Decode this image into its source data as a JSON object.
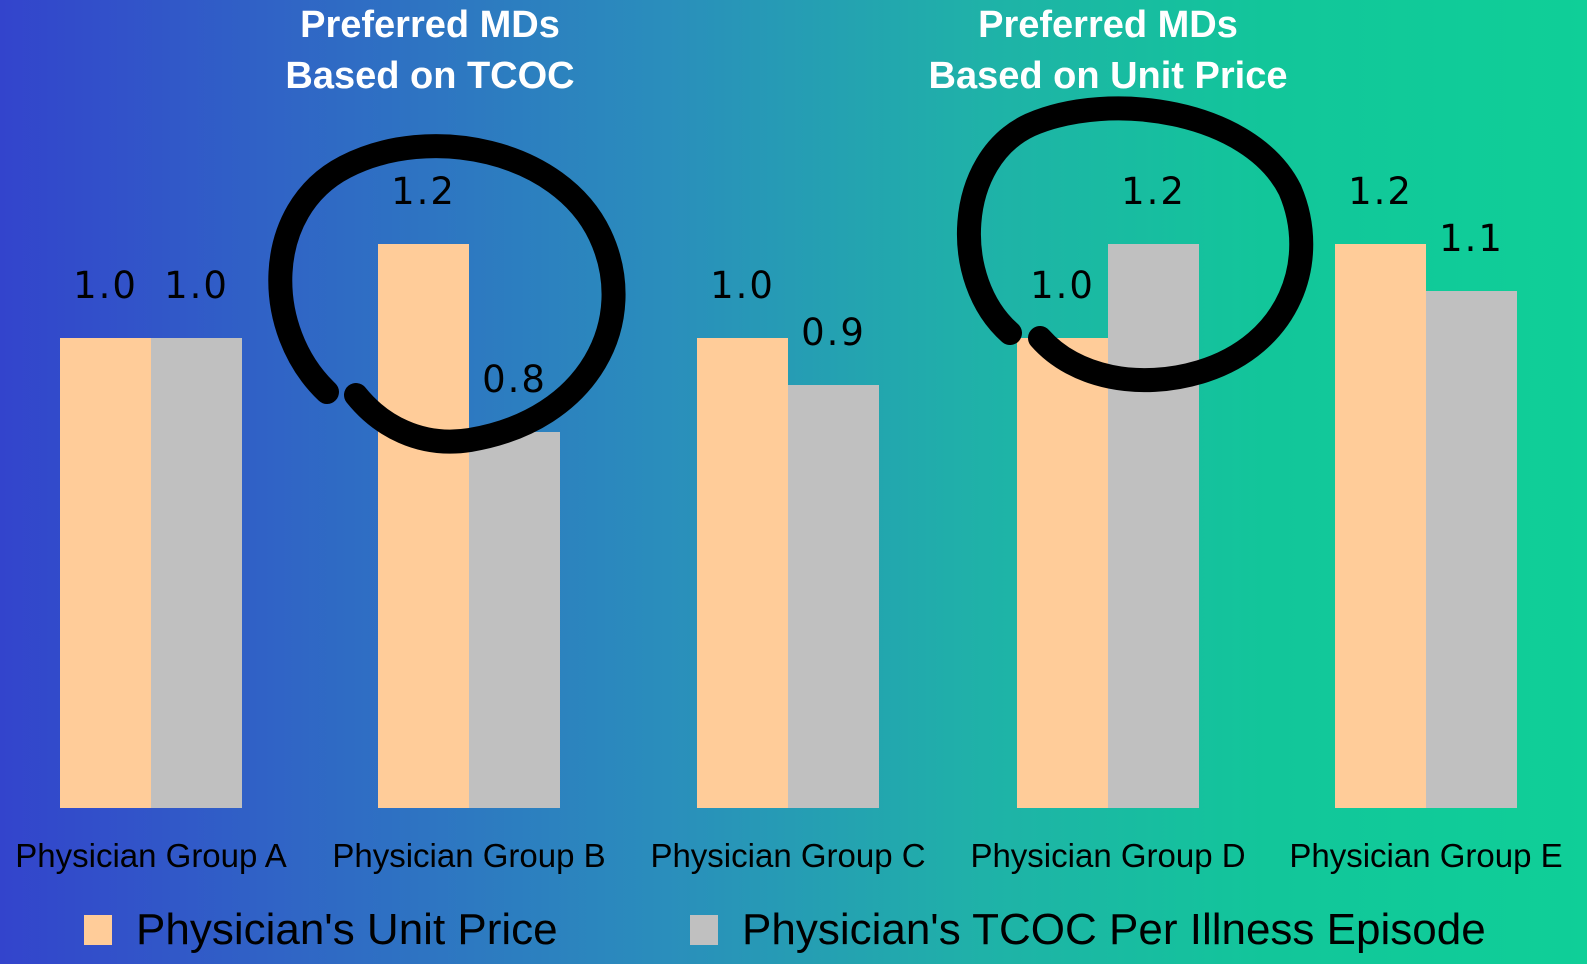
{
  "headings": {
    "left": {
      "line1": "Preferred MDs",
      "line2": "Based on TCOC"
    },
    "right": {
      "line1": "Preferred MDs",
      "line2": "Based on Unit Price"
    }
  },
  "legend": {
    "unit_price": "Physician's Unit Price",
    "tcoc": "Physician's TCOC Per Illness Episode"
  },
  "colors": {
    "unit_price": "#ffcc99",
    "tcoc": "#c0c0c0",
    "heading_text": "#ffffff",
    "circle": "#000000"
  },
  "chart_data": {
    "type": "bar",
    "categories": [
      "Physician Group A",
      "Physician Group B",
      "Physician Group C",
      "Physician Group D",
      "Physician Group E"
    ],
    "series": [
      {
        "name": "Physician's Unit Price",
        "values": [
          1.0,
          1.2,
          1.0,
          1.0,
          1.2
        ]
      },
      {
        "name": "Physician's TCOC Per Illness Episode",
        "values": [
          1.0,
          0.8,
          0.9,
          1.2,
          1.1
        ]
      }
    ],
    "data_labels": [
      [
        "1.0",
        "1.2",
        "1.0",
        "1.0",
        "1.2"
      ],
      [
        "1.0",
        "0.8",
        "0.9",
        "1.2",
        "1.1"
      ]
    ],
    "ylim": [
      0,
      1.2
    ],
    "grid": false,
    "legend_position": "bottom",
    "annotations": [
      "hand-drawn circle around Physician Group B",
      "hand-drawn circle around Physician Group D"
    ]
  }
}
